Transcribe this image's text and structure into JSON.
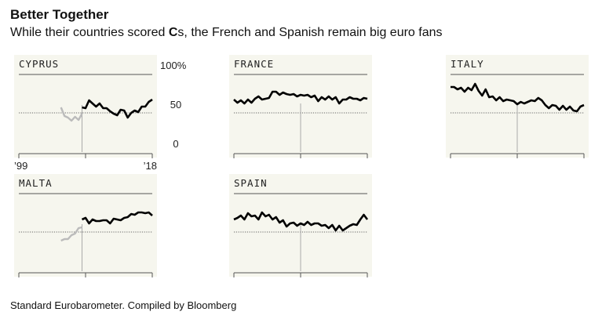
{
  "header": {
    "title": "Better Together",
    "subtitle_before": "While their countries scored ",
    "subtitle_grade": "C",
    "subtitle_after": "s, the French and Spanish remain big euro fans"
  },
  "footer": {
    "source": "Standard Eurobarometer. Compiled by Bloomberg"
  },
  "chart_data": {
    "type": "line",
    "title": "Better Together",
    "subtitle": "While their countries scored Cs, the French and Spanish remain big euro fans",
    "ylim": [
      0,
      100
    ],
    "y_ticks": [
      "100%",
      "50",
      "0"
    ],
    "x_range": [
      1999,
      2018
    ],
    "x_tick_labels": [
      "’99",
      "’18"
    ],
    "reference_line": 50,
    "source": "Standard Eurobarometer. Compiled by Bloomberg",
    "colors": {
      "eurozone": "#000000",
      "pre_euro": "#bbbbbb",
      "panel": "#f6f6ee",
      "reference": "#666666"
    },
    "panels": [
      {
        "name": "CYPRUS",
        "euro_entry_year": 2008,
        "pre_x": [
          2005,
          2005.5,
          2006,
          2006.5,
          2007,
          2007.5,
          2008
        ],
        "pre_y": [
          57,
          46,
          44,
          40,
          45,
          41,
          49
        ],
        "x": [
          2008,
          2008.5,
          2009,
          2009.5,
          2010,
          2010.5,
          2011,
          2011.5,
          2012,
          2012.5,
          2013,
          2013.5,
          2014,
          2014.5,
          2015,
          2015.5,
          2016,
          2016.5,
          2017,
          2017.5,
          2018
        ],
        "y": [
          57,
          56,
          66,
          62,
          58,
          62,
          56,
          56,
          52,
          49,
          47,
          54,
          53,
          44,
          50,
          53,
          51,
          58,
          58,
          64,
          67
        ]
      },
      {
        "name": "FRANCE",
        "euro_entry_year": 1999,
        "x": [
          1999,
          1999.5,
          2000,
          2000.5,
          2001,
          2001.5,
          2002,
          2002.5,
          2003,
          2003.5,
          2004,
          2004.5,
          2005,
          2005.5,
          2006,
          2006.5,
          2007,
          2007.5,
          2008,
          2008.5,
          2009,
          2009.5,
          2010,
          2010.5,
          2011,
          2011.5,
          2012,
          2012.5,
          2013,
          2013.5,
          2014,
          2014.5,
          2015,
          2015.5,
          2016,
          2016.5,
          2017,
          2017.5,
          2018
        ],
        "y": [
          67,
          63,
          66,
          62,
          67,
          63,
          68,
          71,
          67,
          68,
          69,
          77,
          77,
          73,
          76,
          74,
          73,
          74,
          71,
          73,
          72,
          73,
          70,
          72,
          65,
          70,
          67,
          71,
          67,
          70,
          62,
          67,
          67,
          70,
          68,
          68,
          66,
          69,
          68
        ]
      },
      {
        "name": "ITALY",
        "euro_entry_year": 1999,
        "x": [
          1999,
          1999.5,
          2000,
          2000.5,
          2001,
          2001.5,
          2002,
          2002.5,
          2003,
          2003.5,
          2004,
          2004.5,
          2005,
          2005.5,
          2006,
          2006.5,
          2007,
          2007.5,
          2008,
          2008.5,
          2009,
          2009.5,
          2010,
          2010.5,
          2011,
          2011.5,
          2012,
          2012.5,
          2013,
          2013.5,
          2014,
          2014.5,
          2015,
          2015.5,
          2016,
          2016.5,
          2017,
          2017.5,
          2018
        ],
        "y": [
          83,
          83,
          80,
          82,
          77,
          82,
          79,
          87,
          78,
          72,
          80,
          70,
          71,
          66,
          70,
          65,
          67,
          66,
          65,
          61,
          64,
          62,
          64,
          66,
          65,
          69,
          66,
          60,
          56,
          60,
          59,
          54,
          59,
          54,
          58,
          53,
          52,
          58,
          60
        ]
      },
      {
        "name": "MALTA",
        "euro_entry_year": 2008,
        "pre_x": [
          2005,
          2005.5,
          2006,
          2006.5,
          2007,
          2007.5,
          2008
        ],
        "pre_y": [
          39,
          41,
          41,
          46,
          48,
          55,
          56
        ],
        "x": [
          2008,
          2008.5,
          2009,
          2009.5,
          2010,
          2010.5,
          2011,
          2011.5,
          2012,
          2012.5,
          2013,
          2013.5,
          2014,
          2014.5,
          2015,
          2015.5,
          2016,
          2016.5,
          2017,
          2017.5,
          2018
        ],
        "y": [
          66,
          68,
          61,
          66,
          64,
          64,
          65,
          65,
          61,
          67,
          66,
          65,
          68,
          69,
          73,
          72,
          75,
          75,
          74,
          75,
          71
        ]
      },
      {
        "name": "SPAIN",
        "euro_entry_year": 1999,
        "x": [
          1999,
          1999.5,
          2000,
          2000.5,
          2001,
          2001.5,
          2002,
          2002.5,
          2003,
          2003.5,
          2004,
          2004.5,
          2005,
          2005.5,
          2006,
          2006.5,
          2007,
          2007.5,
          2008,
          2008.5,
          2009,
          2009.5,
          2010,
          2010.5,
          2011,
          2011.5,
          2012,
          2012.5,
          2013,
          2013.5,
          2014,
          2014.5,
          2015,
          2015.5,
          2016,
          2016.5,
          2017,
          2017.5,
          2018
        ],
        "y": [
          66,
          68,
          71,
          66,
          74,
          70,
          71,
          66,
          75,
          70,
          72,
          66,
          69,
          62,
          65,
          57,
          61,
          62,
          58,
          61,
          59,
          63,
          59,
          61,
          61,
          58,
          59,
          55,
          59,
          52,
          58,
          52,
          55,
          58,
          60,
          59,
          66,
          72,
          66
        ]
      }
    ]
  }
}
